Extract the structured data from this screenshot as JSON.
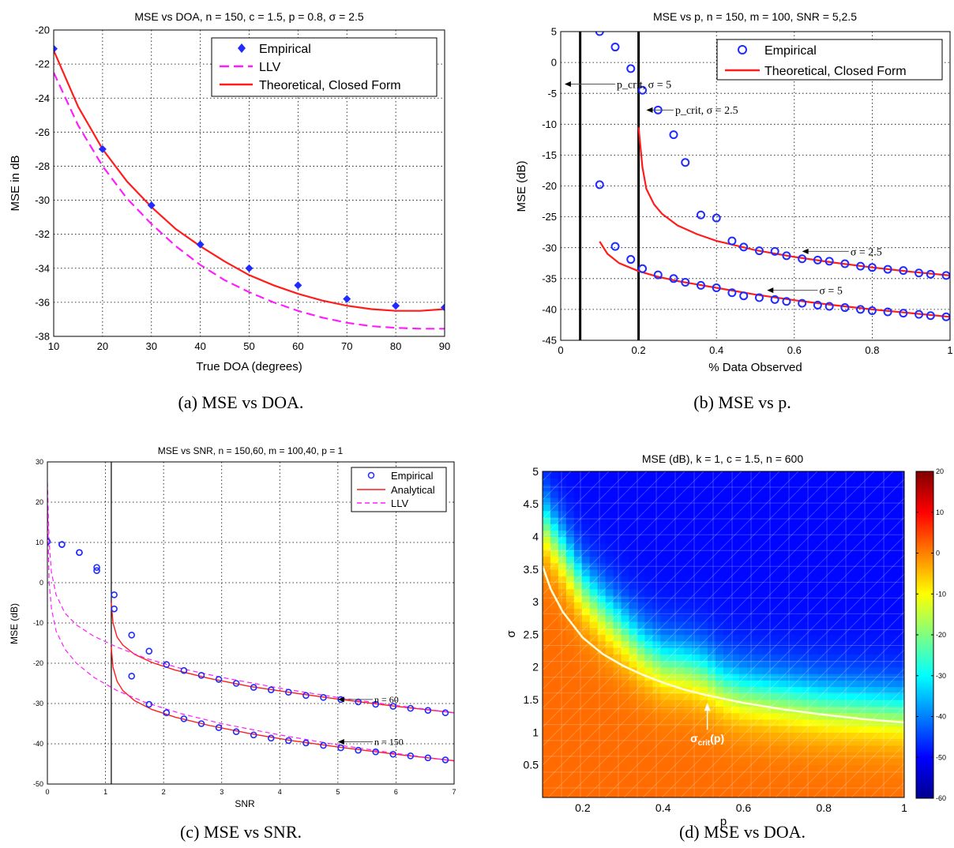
{
  "colors": {
    "red": "#ff1c1c",
    "magenta": "#ff1cff",
    "blue": "#1f2bff",
    "white_curve": "#ffffd8"
  },
  "chart_data": [
    {
      "id": "a",
      "type": "line",
      "title": "MSE vs DOA, n = 150, c = 1.5, p = 0.8, σ = 2.5",
      "xlabel": "True DOA (degrees)",
      "ylabel": "MSE in dB",
      "caption": "(a)  MSE vs DOA.",
      "xlim": [
        10,
        90
      ],
      "ylim": [
        -38,
        -20
      ],
      "xticks": [
        10,
        20,
        30,
        40,
        50,
        60,
        70,
        80,
        90
      ],
      "yticks": [
        -38,
        -36,
        -34,
        -32,
        -30,
        -28,
        -26,
        -24,
        -22,
        -20
      ],
      "grid": true,
      "legend_position": "top-right",
      "legend": [
        "Empirical",
        "LLV",
        "Theoretical, Closed Form"
      ],
      "series": [
        {
          "name": "Empirical",
          "style": "marker",
          "x": [
            10,
            20,
            30,
            40,
            50,
            60,
            70,
            80,
            90
          ],
          "y": [
            -21.1,
            -27.0,
            -30.3,
            -32.6,
            -34.0,
            -35.0,
            -35.8,
            -36.2,
            -36.3
          ]
        },
        {
          "name": "LLV",
          "style": "dashed",
          "x": [
            10,
            15,
            20,
            25,
            30,
            35,
            40,
            45,
            50,
            55,
            60,
            65,
            70,
            75,
            80,
            85,
            90
          ],
          "y": [
            -22.5,
            -25.6,
            -28.0,
            -29.9,
            -31.4,
            -32.7,
            -33.8,
            -34.7,
            -35.4,
            -36.0,
            -36.5,
            -36.9,
            -37.2,
            -37.4,
            -37.5,
            -37.55,
            -37.55
          ]
        },
        {
          "name": "Theoretical, Closed Form",
          "style": "solid",
          "x": [
            10,
            15,
            20,
            25,
            30,
            35,
            40,
            45,
            50,
            55,
            60,
            65,
            70,
            75,
            80,
            85,
            90
          ],
          "y": [
            -21.2,
            -24.5,
            -27.0,
            -28.9,
            -30.4,
            -31.7,
            -32.7,
            -33.6,
            -34.4,
            -35.0,
            -35.5,
            -35.9,
            -36.2,
            -36.4,
            -36.5,
            -36.5,
            -36.4
          ]
        }
      ]
    },
    {
      "id": "b",
      "type": "scatter",
      "title": "MSE vs p, n = 150, m = 100, SNR = 5,2.5",
      "xlabel": "% Data Observed",
      "ylabel": "MSE (dB)",
      "caption": "(b)  MSE vs p.",
      "xlim": [
        0,
        1
      ],
      "ylim": [
        -45,
        5
      ],
      "xticks": [
        0,
        0.2,
        0.4,
        0.6,
        0.8,
        1
      ],
      "yticks": [
        -45,
        -40,
        -35,
        -30,
        -25,
        -20,
        -15,
        -10,
        -5,
        0,
        5
      ],
      "grid": true,
      "legend_position": "top-right",
      "legend": [
        "Empirical",
        "Theoretical, Closed Form"
      ],
      "vlines": [
        0.05,
        0.2
      ],
      "annotations": [
        {
          "text": "p_crit, σ = 5",
          "tail": [
            0.14,
            -3.5
          ],
          "head": [
            0.01,
            -3.5
          ]
        },
        {
          "text": "p_crit, σ = 2.5",
          "tail": [
            0.29,
            -7.7
          ],
          "head": [
            0.22,
            -7.7
          ]
        },
        {
          "text": "σ = 2.5",
          "tail": [
            0.74,
            -30.6
          ],
          "head": [
            0.62,
            -30.6
          ]
        },
        {
          "text": "σ = 5",
          "tail": [
            0.66,
            -36.9
          ],
          "head": [
            0.53,
            -36.9
          ]
        }
      ],
      "series": [
        {
          "name": "Empirical",
          "group": "σ = 2.5",
          "style": "circle",
          "x": [
            0.1,
            0.14,
            0.18,
            0.21,
            0.25,
            0.29,
            0.32,
            0.36,
            0.4,
            0.44,
            0.47,
            0.51,
            0.55,
            0.58,
            0.62,
            0.66,
            0.69,
            0.73,
            0.77,
            0.8,
            0.84,
            0.88,
            0.92,
            0.95,
            0.99
          ],
          "y": [
            5.0,
            2.5,
            -1.0,
            -4.5,
            -7.7,
            -11.7,
            -16.2,
            -24.7,
            -25.2,
            -28.9,
            -29.9,
            -30.5,
            -30.6,
            -31.3,
            -31.8,
            -32.0,
            -32.2,
            -32.6,
            -33.0,
            -33.2,
            -33.5,
            -33.7,
            -34.1,
            -34.3,
            -34.5
          ]
        },
        {
          "name": "Empirical",
          "group": "σ = 5",
          "style": "circle",
          "x": [
            0.1,
            0.14,
            0.18,
            0.21,
            0.25,
            0.29,
            0.32,
            0.36,
            0.4,
            0.44,
            0.47,
            0.51,
            0.55,
            0.58,
            0.62,
            0.66,
            0.69,
            0.73,
            0.77,
            0.8,
            0.84,
            0.88,
            0.92,
            0.95,
            0.99
          ],
          "y": [
            -19.8,
            -29.8,
            -31.9,
            -33.4,
            -34.4,
            -35.0,
            -35.6,
            -36.1,
            -36.5,
            -37.3,
            -37.8,
            -38.1,
            -38.4,
            -38.7,
            -39.0,
            -39.3,
            -39.5,
            -39.7,
            -40.0,
            -40.2,
            -40.4,
            -40.6,
            -40.8,
            -41.0,
            -41.2
          ]
        },
        {
          "name": "Theoretical, Closed Form",
          "group": "σ = 2.5",
          "style": "solid",
          "x": [
            0.2,
            0.21,
            0.22,
            0.24,
            0.26,
            0.3,
            0.35,
            0.4,
            0.5,
            0.6,
            0.7,
            0.8,
            0.9,
            1.0
          ],
          "y": [
            -10.5,
            -17.0,
            -20.5,
            -23.0,
            -24.5,
            -26.4,
            -27.8,
            -28.9,
            -30.4,
            -31.5,
            -32.4,
            -33.2,
            -33.9,
            -34.5
          ]
        },
        {
          "name": "Theoretical, Closed Form",
          "group": "σ = 5",
          "style": "solid",
          "x": [
            0.1,
            0.12,
            0.15,
            0.2,
            0.25,
            0.3,
            0.4,
            0.5,
            0.6,
            0.7,
            0.8,
            0.9,
            1.0
          ],
          "y": [
            -29.0,
            -31.0,
            -32.5,
            -33.8,
            -34.7,
            -35.4,
            -36.5,
            -37.6,
            -38.5,
            -39.3,
            -40.0,
            -40.6,
            -41.2
          ]
        }
      ]
    },
    {
      "id": "c",
      "type": "scatter",
      "title": "MSE vs SNR, n = 150,60, m = 100,40,  p = 1",
      "xlabel": "SNR",
      "ylabel": "MSE (dB)",
      "caption": "(c)  MSE vs SNR.",
      "xlim": [
        0,
        7
      ],
      "ylim": [
        -50,
        30
      ],
      "xticks": [
        0,
        1,
        2,
        3,
        4,
        5,
        6,
        7
      ],
      "yticks": [
        -50,
        -40,
        -30,
        -20,
        -10,
        0,
        10,
        20,
        30
      ],
      "grid": true,
      "legend_position": "top-right",
      "legend": [
        "Empirical",
        "Analytical",
        "LLV"
      ],
      "vlines": [
        1.1
      ],
      "annotations": [
        {
          "text": "n = 60",
          "tail": [
            5.6,
            -29.0
          ],
          "head": [
            5.0,
            -29.0
          ]
        },
        {
          "text": "n = 150",
          "tail": [
            5.6,
            -39.5
          ],
          "head": [
            5.0,
            -39.5
          ]
        }
      ],
      "series": [
        {
          "name": "Empirical",
          "group": "n = 60",
          "style": "circle",
          "x": [
            0.25,
            0.55,
            0.85,
            1.15,
            1.45,
            1.75,
            2.05,
            2.35,
            2.65,
            2.95,
            3.25,
            3.55,
            3.85,
            4.15,
            4.45,
            4.75,
            5.05,
            5.35,
            5.65,
            5.95,
            6.25,
            6.55,
            6.85
          ],
          "y": [
            9.5,
            7.5,
            3.8,
            -3.0,
            -13.0,
            -17.0,
            -20.3,
            -21.8,
            -23.0,
            -24.0,
            -25.0,
            -26.0,
            -26.6,
            -27.2,
            -28.0,
            -28.5,
            -29.0,
            -29.6,
            -30.2,
            -30.7,
            -31.2,
            -31.7,
            -32.3
          ]
        },
        {
          "name": "Empirical",
          "group": "n = 150",
          "style": "circle",
          "x": [
            0.0,
            0.25,
            0.55,
            0.85,
            1.15,
            1.45,
            1.75,
            2.05,
            2.35,
            2.65,
            2.95,
            3.25,
            3.55,
            3.85,
            4.15,
            4.45,
            4.75,
            5.05,
            5.35,
            5.65,
            5.95,
            6.25,
            6.55,
            6.85
          ],
          "y": [
            10.2,
            9.5,
            7.5,
            3.0,
            -6.5,
            -23.2,
            -30.2,
            -32.3,
            -33.8,
            -35.0,
            -36.0,
            -37.0,
            -37.8,
            -38.6,
            -39.2,
            -39.8,
            -40.4,
            -41.0,
            -41.6,
            -42.0,
            -42.6,
            -43.0,
            -43.5,
            -44.0
          ]
        },
        {
          "name": "Analytical",
          "group": "n = 60",
          "style": "solid",
          "x": [
            1.1,
            1.13,
            1.2,
            1.3,
            1.5,
            1.8,
            2.2,
            2.8,
            3.5,
            4.2,
            5.0,
            6.0,
            7.0
          ],
          "y": [
            -5.0,
            -10.0,
            -13.5,
            -15.5,
            -17.8,
            -19.8,
            -21.7,
            -23.8,
            -25.8,
            -27.3,
            -28.9,
            -30.7,
            -32.3
          ]
        },
        {
          "name": "Analytical",
          "group": "n = 150",
          "style": "solid",
          "x": [
            1.1,
            1.13,
            1.2,
            1.3,
            1.5,
            1.8,
            2.2,
            2.8,
            3.5,
            4.2,
            5.0,
            6.0,
            7.0
          ],
          "y": [
            -16.0,
            -21.0,
            -24.5,
            -26.8,
            -29.3,
            -31.5,
            -33.4,
            -35.5,
            -37.5,
            -39.2,
            -40.8,
            -42.6,
            -44.2
          ]
        },
        {
          "name": "LLV",
          "group": "n = 60",
          "style": "dashed",
          "x": [
            0.0,
            0.03,
            0.07,
            0.15,
            0.3,
            0.5,
            0.8,
            1.2,
            1.7,
            2.3,
            3.0,
            4.0,
            5.0,
            6.0,
            7.0
          ],
          "y": [
            25.0,
            10.0,
            2.5,
            -3.0,
            -7.5,
            -10.5,
            -13.3,
            -16.0,
            -18.8,
            -21.3,
            -23.5,
            -26.2,
            -28.5,
            -30.5,
            -32.3
          ]
        },
        {
          "name": "LLV",
          "group": "n = 150",
          "style": "dashed",
          "x": [
            0.0,
            0.03,
            0.07,
            0.15,
            0.3,
            0.5,
            0.8,
            1.2,
            1.7,
            2.3,
            3.0,
            4.0,
            5.0,
            6.0,
            7.0
          ],
          "y": [
            20.0,
            0.0,
            -6.5,
            -12.0,
            -16.5,
            -20.0,
            -23.5,
            -26.8,
            -29.8,
            -32.5,
            -35.0,
            -37.8,
            -40.3,
            -42.4,
            -44.3
          ]
        }
      ]
    },
    {
      "id": "d",
      "type": "heatmap",
      "title": "MSE (dB), k = 1, c = 1.5, n = 600",
      "xlabel": "p",
      "ylabel": "σ",
      "caption": "(d)  MSE vs DOA.",
      "xlim": [
        0.1,
        1
      ],
      "ylim": [
        0,
        5
      ],
      "xticks": [
        0.2,
        0.4,
        0.6,
        0.8,
        1
      ],
      "yticks": [
        0.5,
        1,
        1.5,
        2,
        2.5,
        3,
        3.5,
        4,
        4.5,
        5
      ],
      "colorbar": {
        "min": -60,
        "max": 20,
        "ticks": [
          20,
          10,
          0,
          -10,
          -20,
          -30,
          -40,
          -50,
          -60
        ]
      },
      "annotation": {
        "text": "σcrit(p)",
        "main": "σ",
        "sub": "crit",
        "suffix": "(p)",
        "point": [
          0.51,
          1.45
        ]
      },
      "boundary": {
        "x": [
          0.1,
          0.15,
          0.2,
          0.25,
          0.3,
          0.35,
          0.4,
          0.45,
          0.5,
          0.55,
          0.6,
          0.7,
          0.8,
          0.9,
          1.0
        ],
        "y": [
          4.3,
          3.8,
          3.25,
          2.9,
          2.6,
          2.3,
          2.1,
          2.05,
          1.95,
          1.75,
          1.65,
          1.55,
          1.45,
          1.4,
          1.35
        ]
      },
      "series": [
        {
          "name": "σcrit(p)",
          "style": "solid",
          "x": [
            0.1,
            0.12,
            0.15,
            0.2,
            0.25,
            0.3,
            0.35,
            0.4,
            0.45,
            0.5,
            0.6,
            0.7,
            0.8,
            0.9,
            1.0
          ],
          "y": [
            3.55,
            3.2,
            2.85,
            2.45,
            2.2,
            2.02,
            1.88,
            1.76,
            1.66,
            1.58,
            1.45,
            1.35,
            1.27,
            1.2,
            1.15
          ]
        }
      ]
    }
  ]
}
